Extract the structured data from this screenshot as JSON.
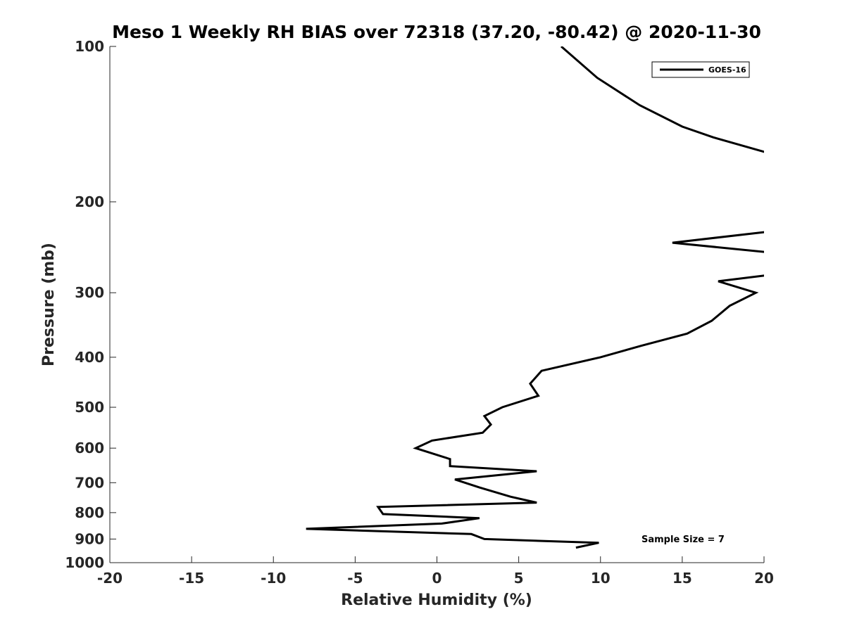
{
  "chart_data": {
    "type": "line",
    "title": "Meso 1 Weekly RH BIAS over 72318 (37.20, -80.42) @ 2020-11-30",
    "xlabel": "Relative Humidity (%)",
    "ylabel": "Pressure (mb)",
    "xlim": [
      -20,
      20
    ],
    "ylim": [
      100,
      1000
    ],
    "y_scale": "log",
    "y_reversed": true,
    "x_ticks": [
      -20,
      -15,
      -10,
      -5,
      0,
      5,
      10,
      15,
      20
    ],
    "y_ticks": [
      100,
      200,
      300,
      400,
      500,
      600,
      700,
      800,
      900,
      1000
    ],
    "grid": false,
    "legend_position": "top-right",
    "annotation": "Sample Size = 7",
    "series": [
      {
        "name": "GOES-16",
        "color": "#000000",
        "points": [
          {
            "x": 7.6,
            "p": 100
          },
          {
            "x": 9.8,
            "p": 115
          },
          {
            "x": 12.4,
            "p": 130
          },
          {
            "x": 15.0,
            "p": 143
          },
          {
            "x": 16.9,
            "p": 150
          },
          {
            "x": 20.0,
            "p": 160
          },
          {
            "x": 20.6,
            "p": 162
          },
          {
            "x": 20.6,
            "p": 226
          },
          {
            "x": 20.0,
            "p": 229
          },
          {
            "x": 14.4,
            "p": 240
          },
          {
            "x": 20.0,
            "p": 250
          },
          {
            "x": 20.6,
            "p": 252
          },
          {
            "x": 20.6,
            "p": 277
          },
          {
            "x": 20.0,
            "p": 278
          },
          {
            "x": 17.2,
            "p": 285
          },
          {
            "x": 19.5,
            "p": 300
          },
          {
            "x": 17.9,
            "p": 318
          },
          {
            "x": 16.8,
            "p": 340
          },
          {
            "x": 15.3,
            "p": 360
          },
          {
            "x": 12.5,
            "p": 380
          },
          {
            "x": 10.0,
            "p": 400
          },
          {
            "x": 6.4,
            "p": 425
          },
          {
            "x": 5.7,
            "p": 450
          },
          {
            "x": 6.2,
            "p": 475
          },
          {
            "x": 4.0,
            "p": 500
          },
          {
            "x": 2.9,
            "p": 520
          },
          {
            "x": 3.3,
            "p": 540
          },
          {
            "x": 2.8,
            "p": 560
          },
          {
            "x": -0.3,
            "p": 580
          },
          {
            "x": -1.3,
            "p": 600
          },
          {
            "x": 0.8,
            "p": 630
          },
          {
            "x": 0.8,
            "p": 650
          },
          {
            "x": 6.1,
            "p": 665
          },
          {
            "x": 1.1,
            "p": 690
          },
          {
            "x": 2.6,
            "p": 715
          },
          {
            "x": 4.5,
            "p": 745
          },
          {
            "x": 6.1,
            "p": 765
          },
          {
            "x": -3.6,
            "p": 780
          },
          {
            "x": -3.3,
            "p": 805
          },
          {
            "x": 2.6,
            "p": 820
          },
          {
            "x": 0.3,
            "p": 840
          },
          {
            "x": -8.0,
            "p": 860
          },
          {
            "x": 2.1,
            "p": 880
          },
          {
            "x": 2.9,
            "p": 900
          },
          {
            "x": 9.9,
            "p": 915
          },
          {
            "x": 8.5,
            "p": 935
          }
        ]
      }
    ]
  }
}
